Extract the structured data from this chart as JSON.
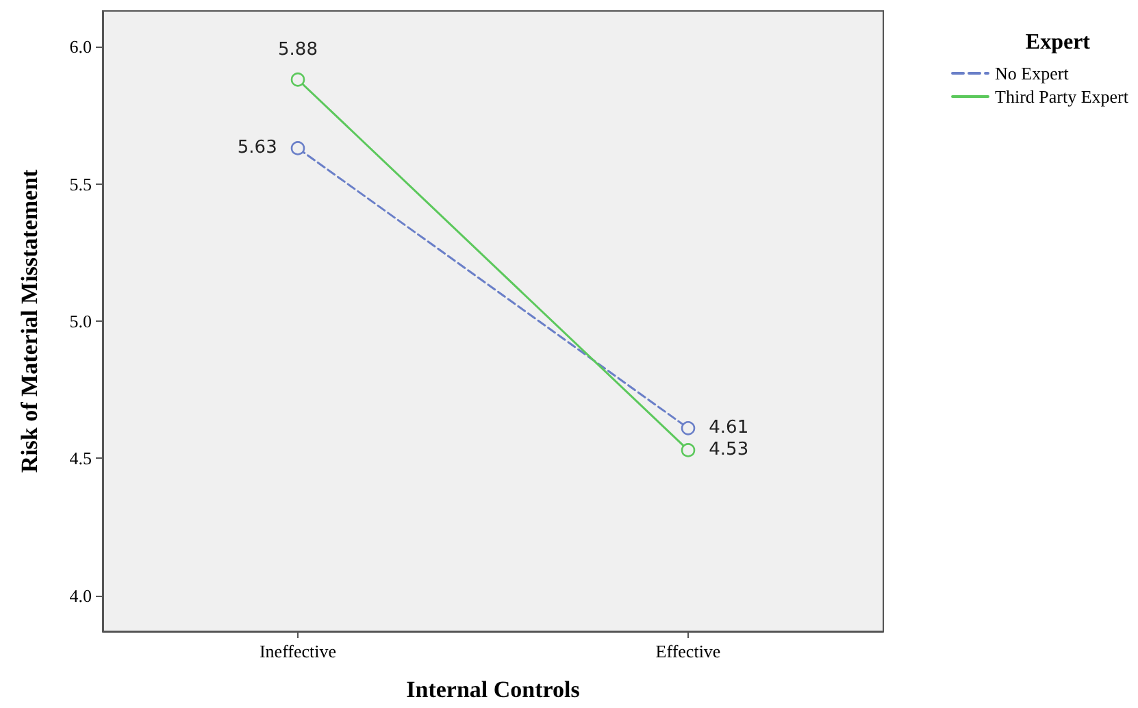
{
  "chart_data": {
    "type": "line",
    "xlabel": "Internal Controls",
    "ylabel": "Risk of Material Misstatement",
    "legend_title": "Expert",
    "categories": [
      "Ineffective",
      "Effective"
    ],
    "series": [
      {
        "name": "No Expert",
        "color": "#6a7fc8",
        "values": [
          5.63,
          4.61
        ],
        "line_style": "dashed"
      },
      {
        "name": "Third Party Expert",
        "color": "#5cc85c",
        "values": [
          5.88,
          4.53
        ],
        "line_style": "solid"
      }
    ],
    "ylim": [
      3.87,
      6.13
    ],
    "yticks": [
      {
        "value": 4,
        "label": "4.0"
      },
      {
        "value": 4.5,
        "label": "4.5"
      },
      {
        "value": 5,
        "label": "5.0"
      },
      {
        "value": 5.5,
        "label": "5.5"
      },
      {
        "value": 6,
        "label": "6.0"
      }
    ],
    "grid": false,
    "legend": "top right",
    "marker": "circle",
    "data_labels": true
  }
}
